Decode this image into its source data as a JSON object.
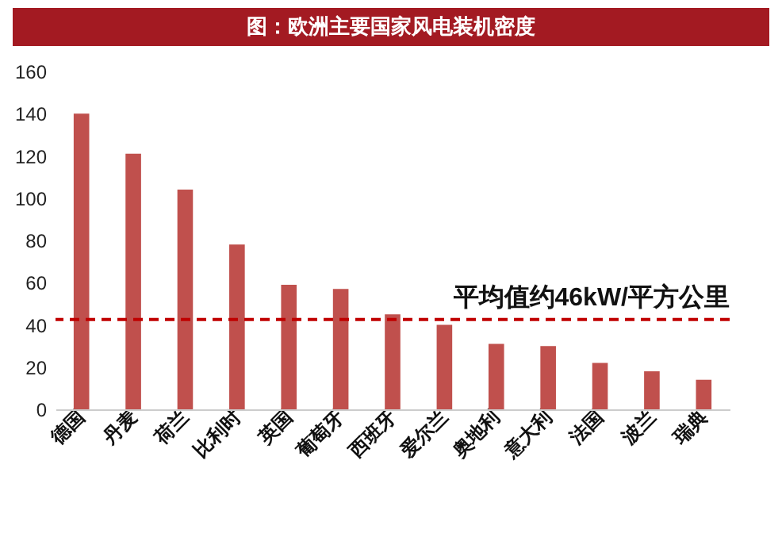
{
  "chart_data": {
    "type": "bar",
    "title": "图：欧洲主要国家风电装机密度",
    "categories": [
      "德国",
      "丹麦",
      "荷兰",
      "比利时",
      "英国",
      "葡萄牙",
      "西班牙",
      "爱尔兰",
      "奥地利",
      "意大利",
      "法国",
      "波兰",
      "瑞典"
    ],
    "values": [
      140,
      121,
      104,
      78,
      59,
      57,
      45,
      40,
      31,
      30,
      22,
      18,
      14
    ],
    "color": "#c0504d",
    "ylim": [
      0,
      160
    ],
    "yticks": [
      0,
      20,
      40,
      60,
      80,
      100,
      120,
      140,
      160
    ],
    "grid": false,
    "ref_lines": [
      {
        "axis": "y",
        "value": 42.5,
        "label": "平均值约46kW/平方公里",
        "color": "#c00000",
        "line_style": "dashed"
      }
    ]
  }
}
